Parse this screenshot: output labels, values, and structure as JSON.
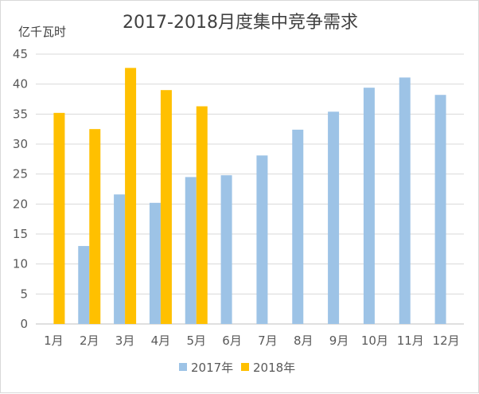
{
  "chart_data": {
    "type": "bar",
    "title": "2017-2018月度集中竞争需求",
    "ylabel": "亿千瓦时",
    "xlabel": "",
    "categories": [
      "1月",
      "2月",
      "3月",
      "4月",
      "5月",
      "6月",
      "7月",
      "8月",
      "9月",
      "10月",
      "11月",
      "12月"
    ],
    "series": [
      {
        "name": "2017年",
        "color": "#9DC3E6",
        "values": [
          null,
          13.0,
          21.6,
          20.2,
          24.5,
          24.8,
          28.1,
          32.4,
          35.4,
          39.4,
          41.1,
          38.2
        ]
      },
      {
        "name": "2018年",
        "color": "#FFC000",
        "values": [
          35.2,
          32.5,
          42.7,
          39.0,
          36.3,
          null,
          null,
          null,
          null,
          null,
          null,
          null
        ]
      }
    ],
    "ylim": [
      0,
      45
    ],
    "yticks": [
      0,
      5,
      10,
      15,
      20,
      25,
      30,
      35,
      40,
      45
    ],
    "grid": true,
    "legend_position": "bottom"
  }
}
